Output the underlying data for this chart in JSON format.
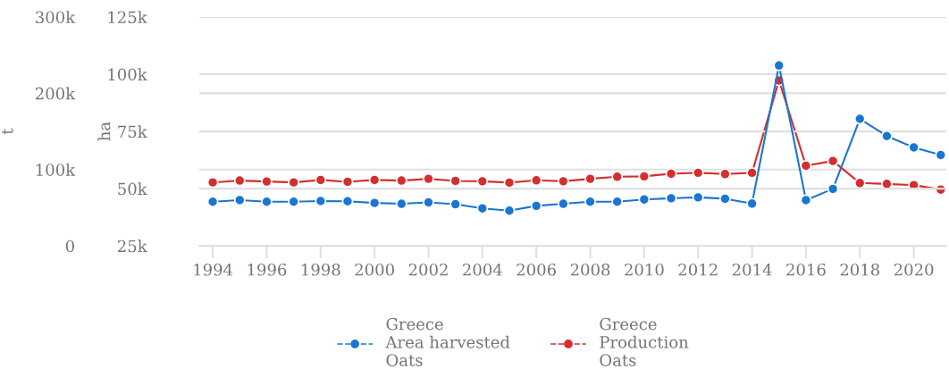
{
  "chart_data": {
    "type": "line",
    "x": [
      1994,
      1995,
      1996,
      1997,
      1998,
      1999,
      2000,
      2001,
      2002,
      2003,
      2004,
      2005,
      2006,
      2007,
      2008,
      2009,
      2010,
      2011,
      2012,
      2013,
      2014,
      2015,
      2016,
      2017,
      2018,
      2019,
      2020,
      2021
    ],
    "series": [
      {
        "name": "Greece\nArea harvested\nOats",
        "color": "#1976d2",
        "values": [
          44300,
          45000,
          44300,
          44300,
          44600,
          44500,
          43750,
          43400,
          44000,
          43200,
          41400,
          40400,
          42500,
          43400,
          44300,
          44300,
          45300,
          45800,
          46200,
          45600,
          43500,
          103800,
          45000,
          49900,
          80500,
          73000,
          68000,
          64700
        ]
      },
      {
        "name": "Greece\nProduction\nOats",
        "color": "#d32f2f",
        "axis": "y2",
        "values": [
          83200,
          85600,
          84400,
          83200,
          86400,
          84000,
          86400,
          85600,
          87900,
          85200,
          84700,
          82900,
          85900,
          84700,
          87900,
          90600,
          91100,
          94600,
          95800,
          94100,
          95800,
          216800,
          105100,
          111300,
          82400,
          81200,
          79700,
          73800
        ]
      }
    ],
    "ylabel": "ha",
    "y2label": "t",
    "xlim": [
      1993.5,
      2021.2
    ],
    "xticks": [
      1994,
      1996,
      1998,
      2000,
      2002,
      2004,
      2006,
      2008,
      2010,
      2012,
      2014,
      2016,
      2018,
      2020
    ],
    "ylim": [
      25000,
      125000
    ],
    "yticks": [
      {
        "value": 25000,
        "label": "25k"
      },
      {
        "value": 50000,
        "label": "50k"
      },
      {
        "value": 75000,
        "label": "75k"
      },
      {
        "value": 100000,
        "label": "100k"
      },
      {
        "value": 125000,
        "label": "125k"
      }
    ],
    "y2lim": [
      0,
      300000
    ],
    "y2ticks": [
      0,
      {
        "value": 100000,
        "label": "100k"
      },
      {
        "value": 200000,
        "label": "200k"
      },
      {
        "value": 300000,
        "label": "300k"
      }
    ],
    "grid": "y",
    "legend": "bottom",
    "marker": "circle",
    "line_style": "solid"
  }
}
